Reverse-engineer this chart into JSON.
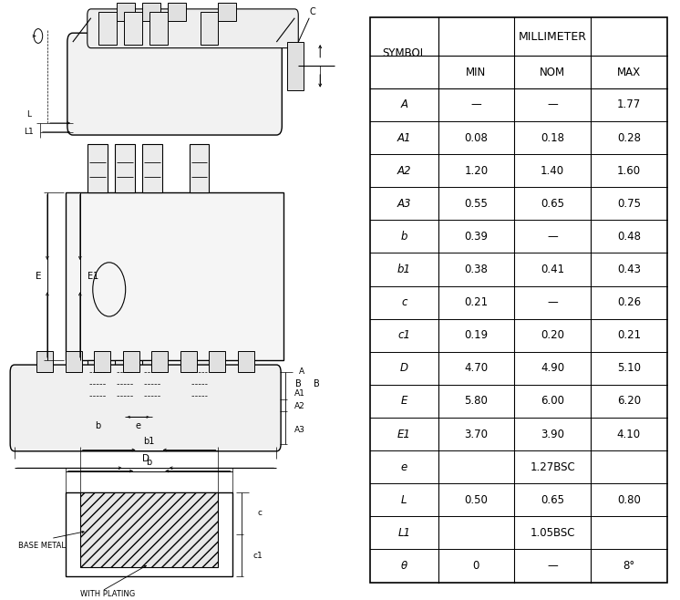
{
  "table": {
    "millimeter_header": "MILLIMETER",
    "col_headers": [
      "SYMBOL",
      "MIN",
      "NOM",
      "MAX"
    ],
    "rows": [
      [
        "A",
        "—",
        "—",
        "1.77"
      ],
      [
        "A1",
        "0.08",
        "0.18",
        "0.28"
      ],
      [
        "A2",
        "1.20",
        "1.40",
        "1.60"
      ],
      [
        "A3",
        "0.55",
        "0.65",
        "0.75"
      ],
      [
        "b",
        "0.39",
        "—",
        "0.48"
      ],
      [
        "b1",
        "0.38",
        "0.41",
        "0.43"
      ],
      [
        "c",
        "0.21",
        "—",
        "0.26"
      ],
      [
        "c1",
        "0.19",
        "0.20",
        "0.21"
      ],
      [
        "D",
        "4.70",
        "4.90",
        "5.10"
      ],
      [
        "E",
        "5.80",
        "6.00",
        "6.20"
      ],
      [
        "E1",
        "3.70",
        "3.90",
        "4.10"
      ],
      [
        "e",
        "1.27BSC",
        null,
        null
      ],
      [
        "L",
        "0.50",
        "0.65",
        "0.80"
      ],
      [
        "L1",
        "1.05BSC",
        null,
        null
      ],
      [
        "θ",
        "0",
        "—",
        "8°"
      ]
    ]
  },
  "bg_color": "#ffffff",
  "line_color": "#000000",
  "text_color": "#000000"
}
